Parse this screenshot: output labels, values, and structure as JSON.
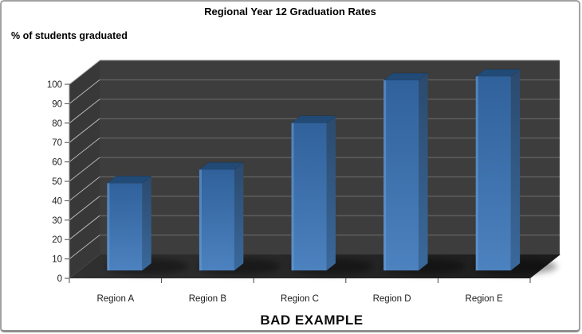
{
  "window": {
    "background": "#ffffff",
    "border_color": "#a2a2a2"
  },
  "chart_data": {
    "type": "bar",
    "variant": "3d-column",
    "title": "Regional Year 12 Graduation Rates",
    "ylabel": "% of students graduated",
    "caption": "BAD EXAMPLE",
    "categories": [
      "Region A",
      "Region B",
      "Region C",
      "Region D",
      "Region E"
    ],
    "values": [
      45,
      52,
      76,
      98,
      100
    ],
    "ylim": [
      0,
      100
    ],
    "ytick_step": 10,
    "yticks": [
      0,
      10,
      20,
      30,
      40,
      50,
      60,
      70,
      80,
      90,
      100
    ],
    "grid": true,
    "legend": "none",
    "colors": {
      "bar_front_top": "#30619b",
      "bar_front_bottom": "#4c82bf",
      "bar_left_highlight": "#6d9ed4",
      "bar_side": "#2b4a6d",
      "bar_side_light": "#3a699c",
      "bar_top": "#214b76",
      "wall_back": "#3d3d3d",
      "wall_side": "#383838",
      "floor_left": "#303030",
      "floor_right": "#1c1c1c",
      "gridline_back": "#6f6f6f",
      "gridline_side": "#b5b5b5",
      "axis_line": "#8a8a8a",
      "tick_color": "#4a4a4a",
      "label_color": "#1a1a1a"
    }
  }
}
